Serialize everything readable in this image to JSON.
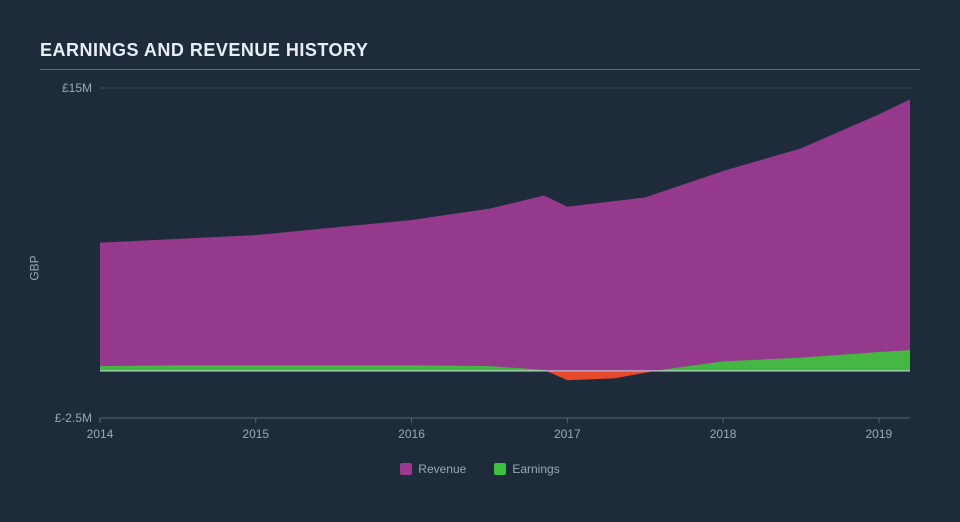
{
  "title": "EARNINGS AND REVENUE HISTORY",
  "chart": {
    "type": "area",
    "y_axis_title": "GBP",
    "background_color": "#1e2b3a",
    "grid_color": "#3a4856",
    "axis_line_color": "#5a6876",
    "label_color": "#9aa8b6",
    "title_color": "#e8eef4",
    "title_fontsize": 18,
    "label_fontsize": 12,
    "x_labels": [
      "2014",
      "2015",
      "2016",
      "2017",
      "2018",
      "2019"
    ],
    "x_values": [
      2014,
      2015,
      2016,
      2017,
      2018,
      2019
    ],
    "y_ticks": [
      -2.5,
      15
    ],
    "y_tick_labels": [
      "£-2.5M",
      "£15M"
    ],
    "ylim": [
      -2.5,
      15
    ],
    "xlim": [
      2014,
      2019.2
    ],
    "revenue_color": "#9b3a8f",
    "earnings_pos_color": "#3fbf3f",
    "earnings_neg_color": "#f04a2a",
    "zero_line_color": "#c8d2dc",
    "revenue": {
      "x": [
        2014,
        2014.5,
        2015,
        2015.5,
        2016,
        2016.5,
        2016.85,
        2017,
        2017.5,
        2018,
        2018.5,
        2019,
        2019.2
      ],
      "y": [
        6.8,
        7.0,
        7.2,
        7.6,
        8.0,
        8.6,
        9.3,
        8.7,
        9.2,
        10.6,
        11.8,
        13.6,
        14.4
      ]
    },
    "earnings": {
      "x": [
        2014,
        2014.5,
        2015,
        2015.5,
        2016,
        2016.5,
        2016.85,
        2017,
        2017.3,
        2017.6,
        2018,
        2018.5,
        2019,
        2019.2
      ],
      "y": [
        0.25,
        0.3,
        0.3,
        0.3,
        0.3,
        0.25,
        0.05,
        -0.5,
        -0.4,
        0.05,
        0.5,
        0.7,
        1.0,
        1.1
      ]
    },
    "legend": {
      "items": [
        {
          "label": "Revenue",
          "color": "#9b3a8f"
        },
        {
          "label": "Earnings",
          "color": "#3fbf3f"
        }
      ]
    }
  }
}
